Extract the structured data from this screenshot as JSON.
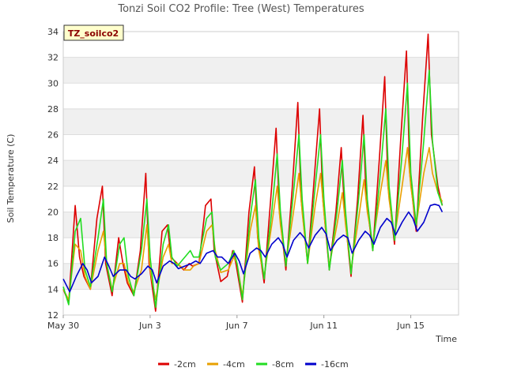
{
  "chart_data": {
    "type": "line",
    "title": "Tonzi Soil CO2 Profile: Tree (West) Temperatures",
    "xlabel": "Time",
    "ylabel": "Soil Temperature (C)",
    "badge": "TZ_soilco2",
    "xlim": [
      0,
      18.2
    ],
    "ylim": [
      12,
      34
    ],
    "x_ticks": [
      {
        "label": "May 30",
        "day": 0
      },
      {
        "label": "Jun 3",
        "day": 4
      },
      {
        "label": "Jun 7",
        "day": 8
      },
      {
        "label": "Jun 11",
        "day": 12
      },
      {
        "label": "Jun 15",
        "day": 16
      }
    ],
    "y_ticks": [
      12,
      14,
      16,
      18,
      20,
      22,
      24,
      26,
      28,
      30,
      32,
      34
    ],
    "grid": true,
    "legend_position": "bottom",
    "series": [
      {
        "name": "-2cm",
        "color": "#dd0000",
        "x": [
          0.0,
          0.25,
          0.55,
          0.75,
          0.95,
          1.25,
          1.55,
          1.8,
          1.95,
          2.25,
          2.55,
          2.75,
          2.95,
          3.25,
          3.55,
          3.8,
          3.95,
          4.25,
          4.55,
          4.8,
          4.95,
          5.25,
          5.55,
          5.8,
          5.95,
          6.25,
          6.55,
          6.8,
          6.95,
          7.25,
          7.55,
          7.8,
          7.95,
          8.25,
          8.55,
          8.8,
          8.95,
          9.25,
          9.55,
          9.8,
          9.95,
          10.25,
          10.55,
          10.8,
          10.95,
          11.25,
          11.55,
          11.8,
          11.95,
          12.25,
          12.55,
          12.8,
          12.95,
          13.25,
          13.55,
          13.8,
          13.95,
          14.25,
          14.55,
          14.8,
          14.95,
          15.25,
          15.55,
          15.8,
          15.95,
          16.25,
          16.55,
          16.8,
          16.95,
          17.25,
          17.45
        ],
        "y": [
          14.0,
          13.0,
          20.5,
          16.5,
          15.0,
          14.0,
          19.5,
          22.0,
          16.0,
          13.5,
          18.0,
          16.0,
          14.5,
          13.5,
          17.0,
          23.0,
          16.0,
          12.3,
          18.5,
          19.0,
          16.5,
          16.0,
          15.5,
          16.0,
          15.8,
          16.0,
          20.5,
          21.0,
          17.0,
          14.6,
          15.0,
          17.0,
          16.0,
          13.0,
          20.0,
          23.5,
          18.0,
          14.5,
          21.0,
          26.5,
          20.0,
          15.5,
          22.0,
          28.5,
          21.0,
          16.0,
          22.5,
          28.0,
          21.0,
          15.5,
          20.0,
          25.0,
          20.0,
          15.0,
          21.0,
          27.5,
          21.0,
          17.0,
          24.0,
          30.5,
          22.0,
          17.5,
          26.0,
          32.5,
          23.0,
          18.5,
          27.5,
          33.8,
          26.0,
          22.0,
          20.5
        ]
      },
      {
        "name": "-4cm",
        "color": "#e8a000",
        "x": [
          0.0,
          0.25,
          0.55,
          0.8,
          1.0,
          1.25,
          1.6,
          1.85,
          2.0,
          2.25,
          2.6,
          2.8,
          3.0,
          3.25,
          3.6,
          3.85,
          4.0,
          4.25,
          4.6,
          4.85,
          5.0,
          5.25,
          5.6,
          5.85,
          6.0,
          6.25,
          6.6,
          6.85,
          7.0,
          7.25,
          7.6,
          7.85,
          8.0,
          8.25,
          8.6,
          8.85,
          9.0,
          9.25,
          9.6,
          9.85,
          10.0,
          10.25,
          10.6,
          10.85,
          11.0,
          11.25,
          11.6,
          11.85,
          12.0,
          12.25,
          12.6,
          12.85,
          13.0,
          13.25,
          13.6,
          13.85,
          14.0,
          14.25,
          14.6,
          14.85,
          15.0,
          15.25,
          15.6,
          15.85,
          16.0,
          16.25,
          16.6,
          16.85,
          17.0,
          17.25,
          17.45
        ],
        "y": [
          14.0,
          13.2,
          17.5,
          17.0,
          15.0,
          14.0,
          17.0,
          18.5,
          16.0,
          14.0,
          16.0,
          16.0,
          14.5,
          13.8,
          15.5,
          19.0,
          15.5,
          13.2,
          16.5,
          17.5,
          16.0,
          16.0,
          15.5,
          15.5,
          15.8,
          16.0,
          18.5,
          19.0,
          17.0,
          15.3,
          15.5,
          16.5,
          16.0,
          13.5,
          18.5,
          20.5,
          17.0,
          15.0,
          19.0,
          22.0,
          19.0,
          16.0,
          20.0,
          23.0,
          20.0,
          16.0,
          20.5,
          23.0,
          20.0,
          15.8,
          19.0,
          21.5,
          19.0,
          15.5,
          19.5,
          22.5,
          20.0,
          17.5,
          21.5,
          24.0,
          21.0,
          18.0,
          22.0,
          25.0,
          22.0,
          19.0,
          23.0,
          25.0,
          23.0,
          21.5,
          20.8
        ]
      },
      {
        "name": "-8cm",
        "color": "#22dd22",
        "x": [
          0.0,
          0.25,
          0.55,
          0.8,
          1.0,
          1.25,
          1.6,
          1.85,
          2.0,
          2.25,
          2.6,
          2.8,
          3.0,
          3.25,
          3.6,
          3.85,
          4.0,
          4.25,
          4.6,
          4.85,
          5.0,
          5.25,
          5.6,
          5.85,
          6.0,
          6.25,
          6.6,
          6.85,
          7.0,
          7.25,
          7.6,
          7.85,
          8.0,
          8.25,
          8.6,
          8.85,
          9.0,
          9.25,
          9.6,
          9.85,
          10.0,
          10.25,
          10.6,
          10.85,
          11.0,
          11.25,
          11.6,
          11.85,
          12.0,
          12.25,
          12.6,
          12.85,
          13.0,
          13.25,
          13.6,
          13.85,
          14.0,
          14.25,
          14.6,
          14.85,
          15.0,
          15.25,
          15.6,
          15.85,
          16.0,
          16.25,
          16.6,
          16.85,
          17.0,
          17.25,
          17.45
        ],
        "y": [
          14.2,
          12.8,
          18.5,
          19.5,
          15.5,
          14.2,
          18.0,
          21.0,
          16.0,
          13.8,
          17.5,
          18.0,
          15.0,
          13.5,
          17.0,
          21.0,
          16.5,
          12.6,
          17.5,
          19.0,
          16.5,
          15.8,
          16.5,
          17.0,
          16.5,
          16.5,
          19.5,
          20.0,
          16.5,
          15.5,
          16.0,
          17.0,
          16.0,
          13.2,
          19.5,
          22.5,
          18.0,
          14.8,
          20.0,
          24.5,
          20.0,
          15.8,
          21.5,
          26.0,
          21.0,
          16.0,
          22.0,
          26.0,
          21.0,
          15.5,
          20.0,
          24.0,
          20.0,
          15.2,
          21.0,
          26.0,
          21.0,
          17.0,
          23.0,
          28.0,
          22.0,
          17.8,
          24.5,
          30.0,
          23.0,
          19.0,
          25.5,
          31.0,
          25.5,
          21.5,
          20.5
        ]
      },
      {
        "name": "-16cm",
        "color": "#0000cc",
        "x": [
          0.0,
          0.3,
          0.6,
          0.9,
          1.1,
          1.3,
          1.6,
          1.9,
          2.1,
          2.3,
          2.6,
          2.9,
          3.1,
          3.3,
          3.6,
          3.9,
          4.1,
          4.3,
          4.6,
          4.9,
          5.1,
          5.3,
          5.6,
          5.9,
          6.1,
          6.3,
          6.6,
          6.9,
          7.1,
          7.3,
          7.6,
          7.9,
          8.1,
          8.3,
          8.6,
          8.9,
          9.1,
          9.3,
          9.6,
          9.9,
          10.1,
          10.3,
          10.6,
          10.9,
          11.1,
          11.3,
          11.6,
          11.9,
          12.1,
          12.3,
          12.6,
          12.9,
          13.1,
          13.3,
          13.6,
          13.9,
          14.1,
          14.3,
          14.6,
          14.9,
          15.1,
          15.3,
          15.6,
          15.9,
          16.1,
          16.3,
          16.6,
          16.9,
          17.1,
          17.3,
          17.45
        ],
        "y": [
          14.8,
          13.8,
          15.0,
          16.0,
          15.5,
          14.5,
          15.0,
          16.5,
          15.8,
          15.0,
          15.5,
          15.5,
          15.0,
          14.8,
          15.2,
          15.8,
          15.5,
          14.5,
          15.8,
          16.2,
          16.0,
          15.6,
          15.8,
          16.0,
          16.2,
          16.0,
          16.8,
          17.0,
          16.5,
          16.5,
          16.0,
          16.8,
          16.2,
          15.2,
          16.8,
          17.2,
          17.0,
          16.5,
          17.5,
          18.0,
          17.5,
          16.5,
          17.8,
          18.4,
          18.0,
          17.2,
          18.2,
          18.8,
          18.3,
          17.0,
          17.8,
          18.2,
          18.0,
          16.8,
          17.8,
          18.5,
          18.2,
          17.5,
          18.8,
          19.5,
          19.2,
          18.2,
          19.2,
          20.0,
          19.5,
          18.5,
          19.2,
          20.5,
          20.6,
          20.5,
          20.0
        ]
      }
    ]
  }
}
